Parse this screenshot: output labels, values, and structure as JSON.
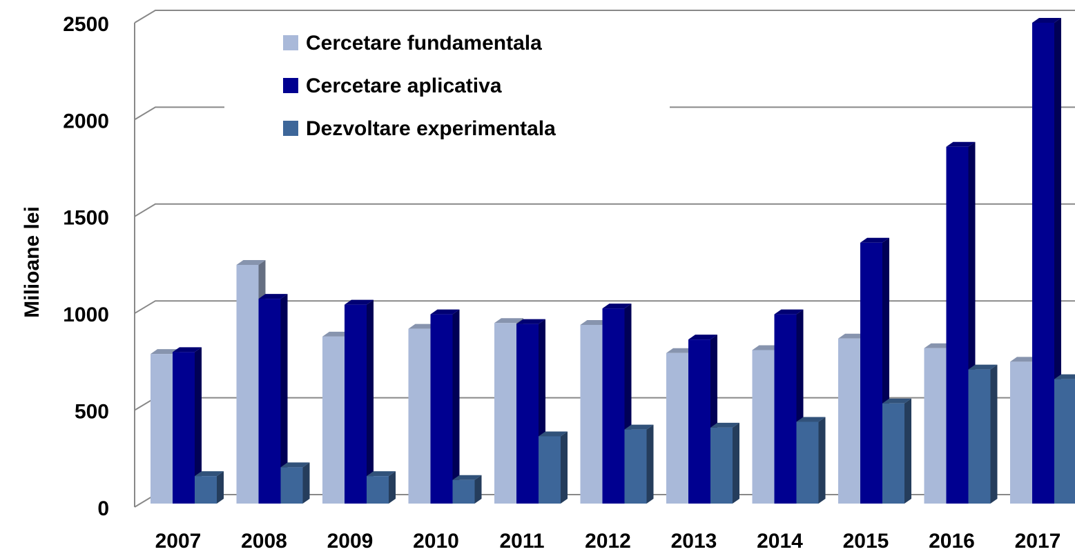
{
  "chart_data": {
    "type": "bar",
    "y_label": "Milioane lei",
    "categories": [
      "2007",
      "2008",
      "2009",
      "2010",
      "2011",
      "2012",
      "2013",
      "2014",
      "2015",
      "2016",
      "2017"
    ],
    "series": [
      {
        "name": "Cercetare fundamentala",
        "color": "#a9b9d9",
        "values": [
          790,
          1250,
          880,
          920,
          950,
          940,
          795,
          810,
          870,
          820,
          750
        ]
      },
      {
        "name": "Cercetare aplicativa",
        "color": "#000090",
        "values": [
          800,
          1075,
          1045,
          995,
          945,
          1025,
          865,
          995,
          1365,
          1860,
          2500
        ]
      },
      {
        "name": "Dezvoltare experimentala",
        "color": "#3d6699",
        "values": [
          160,
          205,
          160,
          140,
          365,
          400,
          410,
          440,
          535,
          710,
          660
        ]
      }
    ],
    "ylim": [
      0,
      2500
    ],
    "yticks": [
      0,
      500,
      1000,
      1500,
      2000,
      2500
    ],
    "grid": true,
    "legend": "top"
  }
}
